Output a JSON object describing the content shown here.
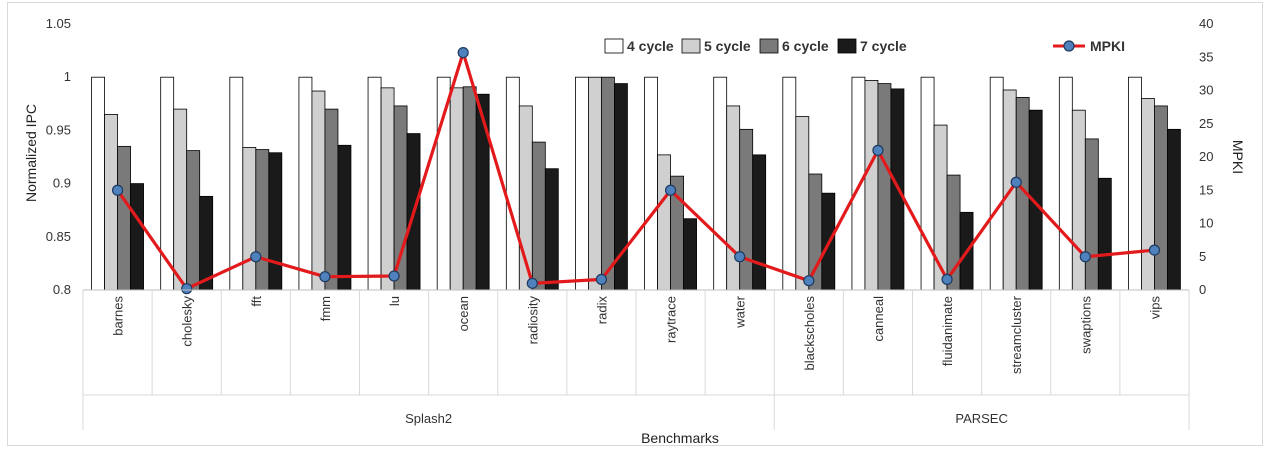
{
  "chart_data": {
    "type": "bar",
    "xlabel": "Benchmarks",
    "ylabel": "Normalized IPC",
    "y2label": "MPKI",
    "ylim": [
      0.8,
      1.05
    ],
    "yticks": [
      "0.8",
      "0.85",
      "0.9",
      "0.95",
      "1",
      "1.05"
    ],
    "y2lim": [
      0,
      40
    ],
    "y2ticks": [
      "0",
      "5",
      "10",
      "15",
      "20",
      "25",
      "30",
      "35",
      "40"
    ],
    "grid": false,
    "legend_position": "top-right",
    "categories": [
      "barnes",
      "cholesky",
      "fft",
      "fmm",
      "lu",
      "ocean",
      "radiosity",
      "radix",
      "raytrace",
      "water",
      "blackscholes",
      "canneal",
      "fluidanimate",
      "streamcluster",
      "swaptions",
      "vips"
    ],
    "groups": [
      {
        "label": "Splash2",
        "count": 10
      },
      {
        "label": "PARSEC",
        "count": 6
      }
    ],
    "series": [
      {
        "name": "4 cycle",
        "axis": "left",
        "kind": "bar",
        "color": "#ffffff",
        "values": [
          1,
          1,
          1,
          1,
          1,
          1,
          1,
          1,
          1,
          1,
          1,
          1,
          1,
          1,
          1,
          1
        ]
      },
      {
        "name": "5 cycle",
        "axis": "left",
        "kind": "bar",
        "color": "#d0d0d0",
        "values": [
          0.965,
          0.97,
          0.934,
          0.987,
          0.99,
          0.99,
          0.973,
          1.0,
          0.927,
          0.973,
          0.963,
          0.997,
          0.955,
          0.988,
          0.969,
          0.98
        ]
      },
      {
        "name": "6 cycle",
        "axis": "left",
        "kind": "bar",
        "color": "#7a7a7a",
        "values": [
          0.935,
          0.931,
          0.932,
          0.97,
          0.973,
          0.991,
          0.939,
          1.0,
          0.907,
          0.951,
          0.909,
          0.994,
          0.908,
          0.981,
          0.942,
          0.973
        ]
      },
      {
        "name": "7 cycle",
        "axis": "left",
        "kind": "bar",
        "color": "#1a1a1a",
        "values": [
          0.9,
          0.888,
          0.929,
          0.936,
          0.947,
          0.984,
          0.914,
          0.994,
          0.867,
          0.927,
          0.891,
          0.989,
          0.873,
          0.969,
          0.905,
          0.951
        ]
      },
      {
        "name": "MPKI",
        "axis": "right",
        "kind": "line",
        "color": "#e31a1c",
        "marker_color": "#4f81bd",
        "values": [
          15,
          0.2,
          5,
          2,
          2.1,
          35.7,
          1,
          1.6,
          15,
          5,
          1.4,
          21,
          1.6,
          16.2,
          5,
          6
        ]
      }
    ]
  }
}
